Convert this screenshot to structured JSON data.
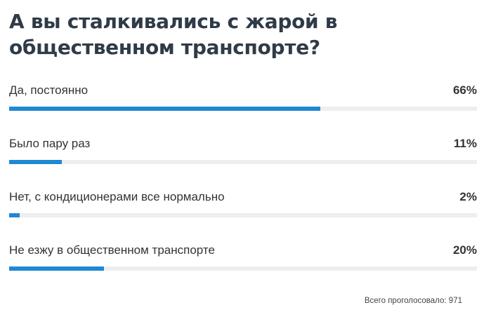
{
  "poll": {
    "title": "А вы сталкивались с жарой в общественном транспорте?",
    "accent_color": "#1e88d4",
    "track_color": "#eeeeee",
    "options": [
      {
        "label": "Да, постоянно",
        "percent_text": "66%",
        "fraction": 0.665
      },
      {
        "label": "Было пару раз",
        "percent_text": "11%",
        "fraction": 0.112
      },
      {
        "label": "Нет, с кондиционерами все нормально",
        "percent_text": "2%",
        "fraction": 0.022
      },
      {
        "label": "Не езжу в общественном транспорте",
        "percent_text": "20%",
        "fraction": 0.203
      }
    ],
    "total_text": "Всего проголосовало: 971"
  }
}
